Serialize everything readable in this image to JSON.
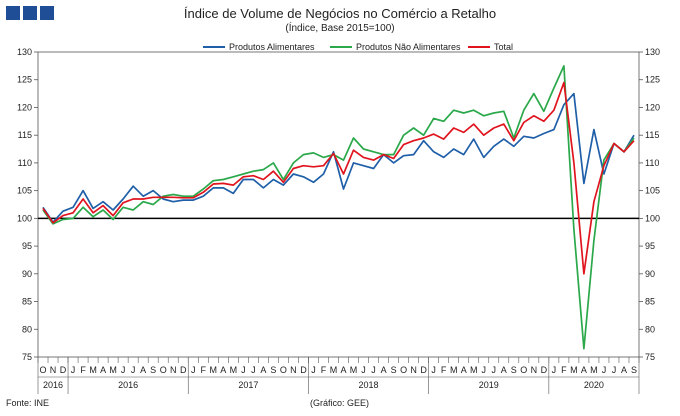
{
  "title": "Índice de Volume de Negócios no Comércio a Retalho",
  "subtitle": "(Índice, Base 2015=100)",
  "source": "Fonte: INE",
  "credit": "(Gráfico: GEE)",
  "chart_data": {
    "type": "line",
    "ylim": [
      75,
      130
    ],
    "yticks": [
      75,
      80,
      85,
      90,
      95,
      100,
      105,
      110,
      115,
      120,
      125,
      130
    ],
    "reference_line": 100,
    "legend_position": "top-center",
    "month_labels": [
      "O",
      "N",
      "D",
      "J",
      "F",
      "M",
      "A",
      "M",
      "J",
      "J",
      "A",
      "S",
      "O",
      "N",
      "D",
      "J",
      "F",
      "M",
      "A",
      "M",
      "J",
      "J",
      "A",
      "S",
      "O",
      "N",
      "D",
      "J",
      "F",
      "M",
      "A",
      "M",
      "J",
      "J",
      "A",
      "S",
      "O",
      "N",
      "D",
      "J",
      "F",
      "M",
      "A",
      "M",
      "J",
      "J",
      "A",
      "S",
      "O",
      "N",
      "D",
      "J",
      "F",
      "M",
      "A",
      "M",
      "J",
      "J",
      "A",
      "S"
    ],
    "year_labels": [
      {
        "label": "2016",
        "start": 0,
        "end": 2
      },
      {
        "label": "2016",
        "start": 3,
        "end": 14
      },
      {
        "label": "2017",
        "start": 15,
        "end": 26
      },
      {
        "label": "2018",
        "start": 27,
        "end": 38
      },
      {
        "label": "2019",
        "start": 39,
        "end": 50
      },
      {
        "label": "2020",
        "start": 51,
        "end": 59
      }
    ],
    "series": [
      {
        "name": "Produtos Alimentares",
        "color": "#1f5fa8",
        "values": [
          102.0,
          99.3,
          101.3,
          102.0,
          105.0,
          101.8,
          103.0,
          101.5,
          103.5,
          105.8,
          104.0,
          105.0,
          103.5,
          103.0,
          103.3,
          103.3,
          104.0,
          105.5,
          105.5,
          104.5,
          107.0,
          107.0,
          105.5,
          107.0,
          106.0,
          108.0,
          107.5,
          106.5,
          108.0,
          112.0,
          105.3,
          110.0,
          109.5,
          109.0,
          111.5,
          110.0,
          111.3,
          111.5,
          114.0,
          112.0,
          111.0,
          112.5,
          111.5,
          114.3,
          111.0,
          113.0,
          114.3,
          113.0,
          114.8,
          114.5,
          115.3,
          116.0,
          120.5,
          122.5,
          106.3,
          116.0,
          108.0,
          113.5,
          112.0,
          115.0
        ]
      },
      {
        "name": "Produtos Não Alimentares",
        "color": "#2aa84a",
        "values": [
          101.5,
          99.0,
          99.8,
          100.0,
          102.0,
          100.3,
          101.5,
          99.8,
          102.0,
          101.5,
          103.0,
          102.5,
          104.0,
          104.3,
          104.0,
          104.0,
          105.3,
          106.8,
          107.0,
          107.5,
          108.0,
          108.5,
          108.8,
          110.0,
          107.0,
          110.0,
          111.5,
          111.8,
          111.0,
          111.5,
          110.5,
          114.5,
          112.5,
          112.0,
          111.5,
          111.5,
          115.0,
          116.3,
          115.0,
          118.0,
          117.5,
          119.5,
          119.0,
          119.5,
          118.5,
          119.0,
          119.3,
          114.5,
          119.5,
          122.5,
          119.3,
          123.5,
          127.5,
          98.0,
          76.5,
          96.0,
          110.5,
          113.5,
          112.0,
          114.5
        ]
      },
      {
        "name": "Total",
        "color": "#e0141e",
        "values": [
          101.8,
          99.2,
          100.5,
          101.0,
          103.5,
          101.0,
          102.3,
          100.5,
          102.8,
          103.5,
          103.5,
          103.8,
          103.8,
          103.8,
          103.7,
          103.7,
          104.7,
          106.2,
          106.3,
          106.0,
          107.5,
          107.7,
          107.0,
          108.5,
          106.5,
          109.0,
          109.5,
          109.3,
          109.5,
          111.7,
          108.0,
          112.3,
          111.0,
          110.5,
          111.5,
          110.8,
          113.3,
          114.0,
          114.5,
          115.2,
          114.3,
          116.3,
          115.5,
          117.0,
          115.0,
          116.3,
          117.0,
          114.0,
          117.3,
          118.5,
          117.5,
          119.5,
          124.5,
          110.0,
          90.0,
          103.0,
          109.5,
          113.5,
          112.0,
          114.0
        ]
      }
    ]
  }
}
